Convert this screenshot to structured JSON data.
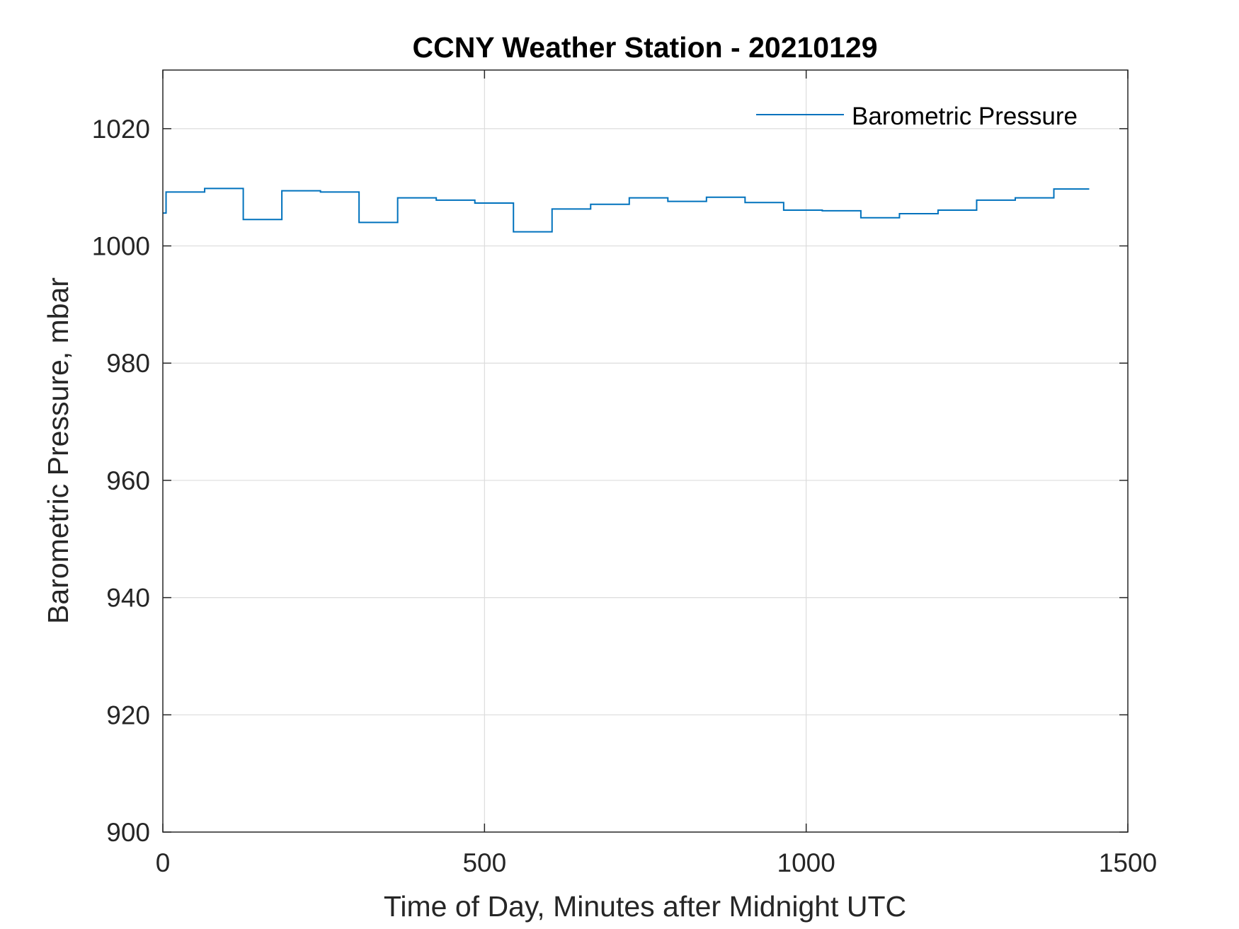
{
  "chart_data": {
    "type": "line",
    "title": "CCNY Weather Station - 20210129",
    "xlabel": "Time of Day, Minutes after Midnight UTC",
    "ylabel": "Barometric Pressure, mbar",
    "xlim": [
      0,
      1500
    ],
    "ylim": [
      900,
      1030
    ],
    "xticks": [
      0,
      500,
      1000,
      1500
    ],
    "yticks": [
      900,
      920,
      940,
      960,
      980,
      1000,
      1020
    ],
    "xtick_labels": [
      "0",
      "500",
      "1000",
      "1500"
    ],
    "ytick_labels": [
      "900",
      "920",
      "940",
      "960",
      "980",
      "1000",
      "1020"
    ],
    "grid": true,
    "legend_position": "top-right",
    "series": [
      {
        "name": "Barometric Pressure",
        "color": "#0072BD",
        "step": true,
        "x": [
          0,
          5,
          65,
          125,
          185,
          245,
          305,
          365,
          425,
          485,
          545,
          605,
          665,
          725,
          785,
          845,
          905,
          965,
          1025,
          1085,
          1145,
          1205,
          1265,
          1325,
          1385,
          1440
        ],
        "y": [
          1005.6,
          1009.2,
          1009.8,
          1004.5,
          1009.4,
          1009.2,
          1004.0,
          1008.2,
          1007.8,
          1007.3,
          1002.4,
          1006.3,
          1007.1,
          1008.2,
          1007.6,
          1008.3,
          1007.4,
          1006.1,
          1006.0,
          1004.8,
          1005.5,
          1006.1,
          1007.8,
          1008.2,
          1009.7,
          1009.7
        ]
      }
    ]
  }
}
